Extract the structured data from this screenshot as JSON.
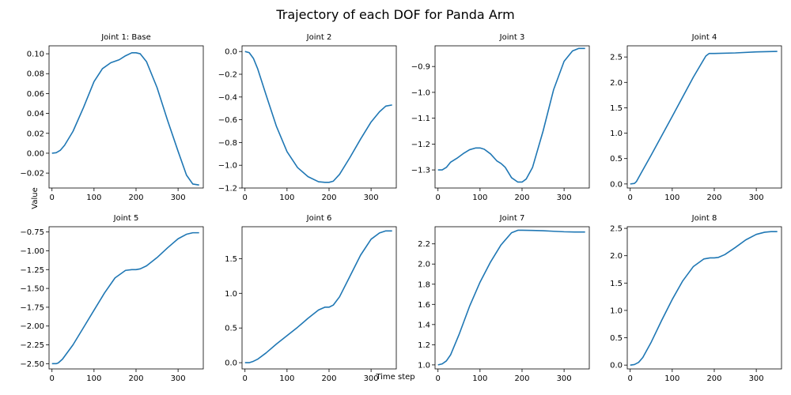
{
  "figure": {
    "title": "Trajectory of each DOF for Panda Arm",
    "xlabel": "Time step",
    "ylabel": "Value",
    "line_color": "#1f77b4"
  },
  "chart_data": [
    {
      "type": "line",
      "title": "Joint 1: Base",
      "xlim": [
        -7,
        360
      ],
      "ylim": [
        -0.035,
        0.108
      ],
      "xticks": [
        0,
        100,
        200,
        300
      ],
      "yticks": [
        -0.02,
        0.0,
        0.02,
        0.04,
        0.06,
        0.08,
        0.1
      ],
      "ytick_labels": [
        "−0.02",
        "0.00",
        "0.02",
        "0.04",
        "0.06",
        "0.08",
        "0.10"
      ],
      "x": [
        0,
        10,
        20,
        30,
        50,
        75,
        100,
        120,
        140,
        160,
        175,
        190,
        200,
        210,
        225,
        250,
        275,
        300,
        320,
        335,
        350
      ],
      "y": [
        0.0,
        0.0005,
        0.003,
        0.008,
        0.022,
        0.046,
        0.072,
        0.085,
        0.091,
        0.094,
        0.098,
        0.101,
        0.101,
        0.1,
        0.092,
        0.066,
        0.033,
        0.002,
        -0.022,
        -0.031,
        -0.032
      ]
    },
    {
      "type": "line",
      "title": "Joint 2",
      "xlim": [
        -7,
        360
      ],
      "ylim": [
        -1.2,
        0.05
      ],
      "xticks": [
        0,
        100,
        200,
        300
      ],
      "yticks": [
        -1.2,
        -1.0,
        -0.8,
        -0.6,
        -0.4,
        -0.2,
        0.0
      ],
      "ytick_labels": [
        "−1.2",
        "−1.0",
        "−0.8",
        "−0.6",
        "−0.4",
        "−0.2",
        "0.0"
      ],
      "x": [
        0,
        10,
        20,
        30,
        50,
        75,
        100,
        125,
        150,
        175,
        190,
        200,
        210,
        225,
        250,
        275,
        300,
        320,
        335,
        350
      ],
      "y": [
        0.0,
        -0.01,
        -0.06,
        -0.15,
        -0.38,
        -0.66,
        -0.88,
        -1.02,
        -1.1,
        -1.145,
        -1.15,
        -1.15,
        -1.14,
        -1.08,
        -0.93,
        -0.77,
        -0.62,
        -0.53,
        -0.48,
        -0.47
      ]
    },
    {
      "type": "line",
      "title": "Joint 3",
      "xlim": [
        -7,
        360
      ],
      "ylim": [
        -1.37,
        -0.82
      ],
      "xticks": [
        0,
        100,
        200,
        300
      ],
      "yticks": [
        -1.3,
        -1.2,
        -1.1,
        -1.0,
        -0.9
      ],
      "ytick_labels": [
        "−1.3",
        "−1.2",
        "−1.1",
        "−1.0",
        "−0.9"
      ],
      "x": [
        0,
        10,
        20,
        30,
        45,
        60,
        75,
        90,
        100,
        110,
        125,
        140,
        150,
        160,
        175,
        190,
        200,
        210,
        225,
        250,
        275,
        300,
        320,
        335,
        350
      ],
      "y": [
        -1.3,
        -1.3,
        -1.29,
        -1.27,
        -1.255,
        -1.237,
        -1.222,
        -1.215,
        -1.215,
        -1.22,
        -1.238,
        -1.265,
        -1.275,
        -1.29,
        -1.33,
        -1.347,
        -1.347,
        -1.335,
        -1.29,
        -1.15,
        -0.99,
        -0.88,
        -0.84,
        -0.83,
        -0.83
      ]
    },
    {
      "type": "line",
      "title": "Joint 4",
      "xlim": [
        -7,
        360
      ],
      "ylim": [
        -0.08,
        2.72
      ],
      "xticks": [
        0,
        100,
        200,
        300
      ],
      "yticks": [
        0.0,
        0.5,
        1.0,
        1.5,
        2.0,
        2.5
      ],
      "ytick_labels": [
        "0.0",
        "0.5",
        "1.0",
        "1.5",
        "2.0",
        "2.5"
      ],
      "x": [
        0,
        10,
        15,
        25,
        50,
        100,
        150,
        180,
        188,
        200,
        250,
        300,
        350
      ],
      "y": [
        0.0,
        0.01,
        0.05,
        0.2,
        0.57,
        1.33,
        2.1,
        2.52,
        2.57,
        2.57,
        2.58,
        2.6,
        2.61
      ]
    },
    {
      "type": "line",
      "title": "Joint 5",
      "xlim": [
        -7,
        360
      ],
      "ylim": [
        -2.57,
        -0.68
      ],
      "xticks": [
        0,
        100,
        200,
        300
      ],
      "yticks": [
        -2.5,
        -2.25,
        -2.0,
        -1.75,
        -1.5,
        -1.25,
        -1.0,
        -0.75
      ],
      "ytick_labels": [
        "−2.50",
        "−2.25",
        "−2.00",
        "−1.75",
        "−1.50",
        "−1.25",
        "−1.00",
        "−0.75"
      ],
      "x": [
        0,
        10,
        15,
        25,
        50,
        75,
        100,
        125,
        150,
        175,
        190,
        200,
        210,
        225,
        250,
        275,
        300,
        320,
        335,
        350
      ],
      "y": [
        -2.5,
        -2.5,
        -2.49,
        -2.44,
        -2.25,
        -2.02,
        -1.79,
        -1.56,
        -1.36,
        -1.26,
        -1.25,
        -1.25,
        -1.24,
        -1.2,
        -1.09,
        -0.96,
        -0.84,
        -0.78,
        -0.76,
        -0.76
      ]
    },
    {
      "type": "line",
      "title": "Joint 6",
      "xlim": [
        -7,
        360
      ],
      "ylim": [
        -0.09,
        1.96
      ],
      "xticks": [
        0,
        100,
        200,
        300
      ],
      "yticks": [
        0.0,
        0.5,
        1.0,
        1.5
      ],
      "ytick_labels": [
        "0.0",
        "0.5",
        "1.0",
        "1.5"
      ],
      "x": [
        0,
        10,
        20,
        30,
        50,
        75,
        100,
        125,
        150,
        175,
        190,
        200,
        210,
        225,
        250,
        275,
        300,
        320,
        335,
        350
      ],
      "y": [
        0.0,
        0.0,
        0.02,
        0.05,
        0.14,
        0.27,
        0.39,
        0.51,
        0.64,
        0.76,
        0.8,
        0.8,
        0.83,
        0.95,
        1.25,
        1.55,
        1.78,
        1.87,
        1.9,
        1.9
      ]
    },
    {
      "type": "line",
      "title": "Joint 7",
      "xlim": [
        -7,
        360
      ],
      "ylim": [
        0.96,
        2.37
      ],
      "xticks": [
        0,
        100,
        200,
        300
      ],
      "yticks": [
        1.0,
        1.2,
        1.4,
        1.6,
        1.8,
        2.0,
        2.2
      ],
      "ytick_labels": [
        "1.0",
        "1.2",
        "1.4",
        "1.6",
        "1.8",
        "2.0",
        "2.2"
      ],
      "x": [
        0,
        10,
        20,
        30,
        50,
        75,
        100,
        125,
        150,
        175,
        190,
        200,
        225,
        250,
        275,
        300,
        325,
        350
      ],
      "y": [
        1.0,
        1.01,
        1.04,
        1.1,
        1.3,
        1.58,
        1.82,
        2.02,
        2.19,
        2.31,
        2.335,
        2.335,
        2.333,
        2.33,
        2.325,
        2.32,
        2.318,
        2.318
      ]
    },
    {
      "type": "line",
      "title": "Joint 8",
      "xlim": [
        -7,
        360
      ],
      "ylim": [
        -0.07,
        2.53
      ],
      "xticks": [
        0,
        100,
        200,
        300
      ],
      "yticks": [
        0.0,
        0.5,
        1.0,
        1.5,
        2.0,
        2.5
      ],
      "ytick_labels": [
        "0.0",
        "0.5",
        "1.0",
        "1.5",
        "2.0",
        "2.5"
      ],
      "x": [
        0,
        10,
        20,
        30,
        50,
        75,
        100,
        125,
        150,
        175,
        190,
        200,
        210,
        225,
        250,
        275,
        300,
        320,
        335,
        350
      ],
      "y": [
        0.0,
        0.01,
        0.05,
        0.14,
        0.42,
        0.82,
        1.2,
        1.54,
        1.8,
        1.94,
        1.96,
        1.96,
        1.97,
        2.02,
        2.15,
        2.29,
        2.39,
        2.43,
        2.44,
        2.44
      ]
    }
  ]
}
